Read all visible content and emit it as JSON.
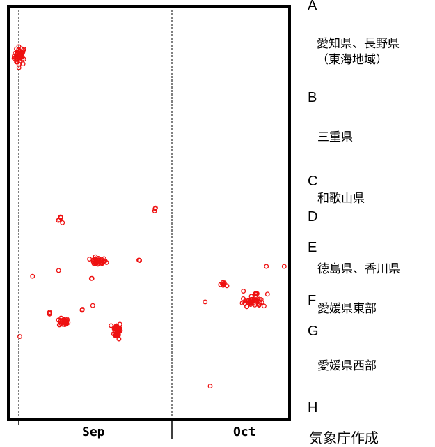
{
  "chart_data": {
    "type": "scatter",
    "title": "",
    "xlabel": "",
    "ylabel": "",
    "marker_color": "#ee1111",
    "x_ticks": [
      {
        "label": "Sep",
        "x": 1
      },
      {
        "label": "Oct",
        "x": 31
      }
    ],
    "region_boundaries": [
      {
        "letter": "A",
        "name": ""
      },
      {
        "letter": "B",
        "name": "愛知県、長野県（東海地域）"
      },
      {
        "letter": "C",
        "name": "三重県"
      },
      {
        "letter": "D",
        "name": "和歌山県"
      },
      {
        "letter": "E",
        "name": ""
      },
      {
        "letter": "F",
        "name": "徳島県、香川県"
      },
      {
        "letter": "G",
        "name": "愛媛県東部"
      },
      {
        "letter": "H",
        "name": "愛媛県西部"
      }
    ],
    "region_labels": [
      "愛知県、長野県\n（東海地域）",
      "三重県",
      "和歌山県",
      "徳島県、香川県",
      "愛媛県東部",
      "愛媛県西部"
    ],
    "clusters": [
      {
        "day": 1.2,
        "pos": 88,
        "n": 42,
        "sx": 0.55,
        "sy": 2.2
      },
      {
        "day": 38.5,
        "pos": 8,
        "n": 1,
        "sx": 0,
        "sy": 0
      },
      {
        "day": 45,
        "pos": 31,
        "n": 1,
        "sx": 0,
        "sy": 0
      },
      {
        "day": 49.5,
        "pos": 37,
        "n": 1,
        "sx": 0,
        "sy": 0
      },
      {
        "day": 53,
        "pos": 37,
        "n": 1,
        "sx": 0,
        "sy": 0
      },
      {
        "day": 27.7,
        "pos": 50.5,
        "n": 3,
        "sx": 0.05,
        "sy": 0.9
      },
      {
        "day": 9.3,
        "pos": 48.5,
        "n": 5,
        "sx": 0.35,
        "sy": 0.9
      },
      {
        "day": 16.5,
        "pos": 38.2,
        "n": 34,
        "sx": 0.8,
        "sy": 0.9
      },
      {
        "day": 24,
        "pos": 38.5,
        "n": 3,
        "sx": 0.55,
        "sy": 0.4
      },
      {
        "day": 8.8,
        "pos": 36,
        "n": 1,
        "sx": 0,
        "sy": 0
      },
      {
        "day": 15.2,
        "pos": 34,
        "n": 2,
        "sx": 0.1,
        "sy": 0.2
      },
      {
        "day": 3.7,
        "pos": 34.6,
        "n": 1,
        "sx": 0,
        "sy": 0
      },
      {
        "day": 41.3,
        "pos": 32.5,
        "n": 8,
        "sx": 0.45,
        "sy": 0.6
      },
      {
        "day": 9.8,
        "pos": 23.5,
        "n": 30,
        "sx": 0.45,
        "sy": 0.9
      },
      {
        "day": 7,
        "pos": 25.7,
        "n": 3,
        "sx": 0.05,
        "sy": 0.4
      },
      {
        "day": 13.4,
        "pos": 26.7,
        "n": 3,
        "sx": 0.05,
        "sy": 0.4
      },
      {
        "day": 15.5,
        "pos": 27.5,
        "n": 1,
        "sx": 0,
        "sy": 0
      },
      {
        "day": 20.3,
        "pos": 21.5,
        "n": 48,
        "sx": 0.35,
        "sy": 2.0
      },
      {
        "day": 1.2,
        "pos": 20,
        "n": 1,
        "sx": 0,
        "sy": 0
      },
      {
        "day": 37.5,
        "pos": 28.4,
        "n": 1,
        "sx": 0,
        "sy": 0
      },
      {
        "day": 46.6,
        "pos": 28.5,
        "n": 42,
        "sx": 0.9,
        "sy": 1.1
      },
      {
        "day": 47.5,
        "pos": 30.3,
        "n": 6,
        "sx": 0.8,
        "sy": 0.2
      }
    ]
  },
  "y_axis": {
    "min": 0,
    "max": 100
  },
  "axis_labels": {
    "sep": "Sep",
    "oct": "Oct"
  },
  "credit": "気象庁作成"
}
